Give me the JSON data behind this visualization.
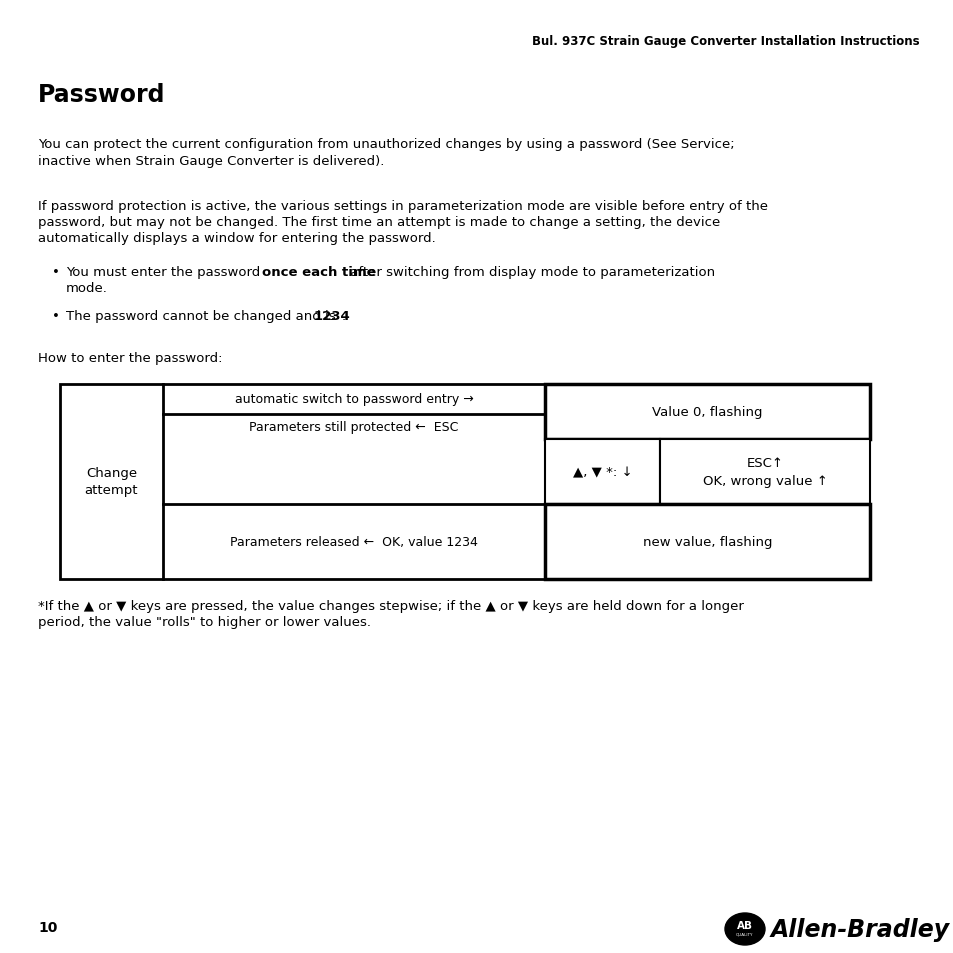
{
  "background_color": "#ffffff",
  "header_text": "Bul. 937C Strain Gauge Converter Installation Instructions",
  "title": "Password",
  "para1": "You can protect the current configuration from unauthorized changes by using a password (See Service;\ninactive when Strain Gauge Converter is delivered).",
  "para2_line1": "If password protection is active, the various settings in parameterization mode are visible before entry of the",
  "para2_line2": "password, but may not be changed. The first time an attempt is made to change a setting, the device",
  "para2_line3": "automatically displays a window for entering the password.",
  "bullet1_pre": "You must enter the password ",
  "bullet1_bold": "once each time",
  "bullet1_post": " after switching from display mode to parameterization",
  "bullet1_line2": "mode.",
  "bullet2_pre": "The password cannot be changed and is ",
  "bullet2_bold": "1234",
  "bullet2_post": ".",
  "how_to": "How to enter the password:",
  "diag_top_arrow": "automatic switch to password entry →",
  "diag_top_back": "Parameters still protected ←  ESC",
  "diag_bottom_back": "Parameters released ←  OK, value 1234",
  "diag_right_top": "Value 0, flashing",
  "diag_mid_left": "▲, ▼ *: ↓",
  "diag_mid_right_line1": "ESC↑",
  "diag_mid_right_line2": "OK, wrong value ↑",
  "diag_right_bot": "new value, flashing",
  "footnote_line1": "*If the ▲ or ▼ keys are pressed, the value changes stepwise; if the ▲ or ▼ keys are held down for a longer",
  "footnote_line2": "period, the value \"rolls\" to higher or lower values.",
  "page_number": "10",
  "footer_brand": "Allen-Bradley",
  "diag_left_label": "Change\nattempt"
}
